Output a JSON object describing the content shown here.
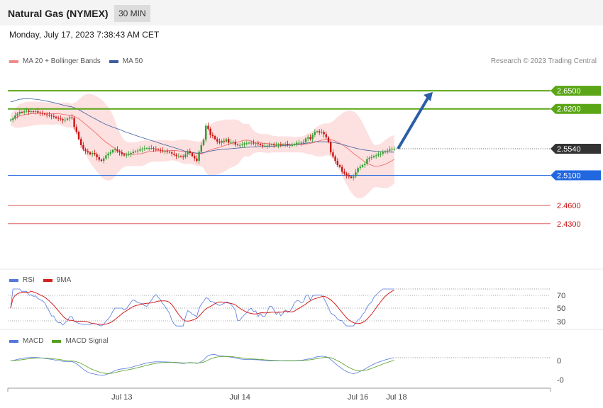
{
  "header": {
    "title": "Natural Gas (NYMEX)",
    "timeframe": "30 MIN"
  },
  "timestamp": "Monday, July 17, 2023 7:38:43 AM CET",
  "credit": "Research © 2023 Trading Central",
  "colors": {
    "resistance": "#5aa616",
    "support": "#2167e0",
    "weak_support": "#e06060",
    "current": "#333333",
    "arrow": "#2b5ea6",
    "bollinger_fill": "#fde0e0",
    "ma20": "#ee6060",
    "ma50": "#3a5f9e",
    "up": "#2e9e2e",
    "down": "#c81414",
    "rsi": "#5577dd",
    "rsi9ma": "#d42020",
    "macd": "#5577dd",
    "macd_signal": "#55a020"
  },
  "main_legend": [
    {
      "label": "MA 20 + Bollinger Bands",
      "color": "#f28b8b"
    },
    {
      "label": "MA 50",
      "color": "#3a5f9e"
    }
  ],
  "rsi_legend": [
    {
      "label": "RSI",
      "color": "#5577dd"
    },
    {
      "label": "9MA",
      "color": "#d42020"
    }
  ],
  "macd_legend": [
    {
      "label": "MACD",
      "color": "#5577dd"
    },
    {
      "label": "MACD Signal",
      "color": "#55a020"
    }
  ],
  "chart_data": {
    "type": "candlestick",
    "ylim": [
      2.418,
      2.683
    ],
    "price_levels": [
      {
        "value": 2.65,
        "label": "2.6500",
        "kind": "resistance"
      },
      {
        "value": 2.62,
        "label": "2.6200",
        "kind": "resistance"
      },
      {
        "value": 2.554,
        "label": "2.5540",
        "kind": "current"
      },
      {
        "value": 2.51,
        "label": "2.5100",
        "kind": "support"
      },
      {
        "value": 2.46,
        "label": "2.4600",
        "kind": "weak_support"
      },
      {
        "value": 2.43,
        "label": "2.4300",
        "kind": "weak_support"
      }
    ],
    "x_labels": [
      {
        "index": 49,
        "label": "Jul 13"
      },
      {
        "index": 101,
        "label": "Jul 14"
      },
      {
        "index": 153,
        "label": "Jul 16"
      },
      {
        "index": 170,
        "label": "Jul 18"
      }
    ],
    "forecast_arrow": {
      "from_index": 170,
      "from_value": 2.554,
      "to_index": 185,
      "to_value": 2.648
    },
    "close": [
      2.602,
      2.604,
      2.609,
      2.612,
      2.615,
      2.614,
      2.616,
      2.617,
      2.615,
      2.616,
      2.615,
      2.616,
      2.614,
      2.613,
      2.612,
      2.611,
      2.61,
      2.609,
      2.608,
      2.607,
      2.605,
      2.604,
      2.603,
      2.601,
      2.602,
      2.604,
      2.606,
      2.605,
      2.59,
      2.582,
      2.57,
      2.56,
      2.553,
      2.55,
      2.548,
      2.545,
      2.547,
      2.545,
      2.54,
      2.536,
      2.534,
      2.538,
      2.543,
      2.546,
      2.548,
      2.552,
      2.553,
      2.55,
      2.548,
      2.545,
      2.543,
      2.544,
      2.545,
      2.547,
      2.549,
      2.55,
      2.551,
      2.553,
      2.554,
      2.555,
      2.555,
      2.555,
      2.555,
      2.554,
      2.553,
      2.552,
      2.551,
      2.55,
      2.55,
      2.549,
      2.548,
      2.546,
      2.544,
      2.542,
      2.542,
      2.541,
      2.54,
      2.545,
      2.55,
      2.547,
      2.542,
      2.538,
      2.534,
      2.549,
      2.56,
      2.569,
      2.592,
      2.587,
      2.577,
      2.575,
      2.57,
      2.566,
      2.564,
      2.567,
      2.566,
      2.57,
      2.564,
      2.565,
      2.565,
      2.561,
      2.56,
      2.56,
      2.561,
      2.563,
      2.563,
      2.564,
      2.564,
      2.563,
      2.563,
      2.562,
      2.56,
      2.559,
      2.559,
      2.559,
      2.561,
      2.561,
      2.56,
      2.56,
      2.561,
      2.56,
      2.561,
      2.562,
      2.56,
      2.56,
      2.56,
      2.562,
      2.564,
      2.564,
      2.564,
      2.565,
      2.571,
      2.573,
      2.57,
      2.577,
      2.582,
      2.583,
      2.581,
      2.582,
      2.578,
      2.573,
      2.565,
      2.548,
      2.541,
      2.534,
      2.527,
      2.524,
      2.516,
      2.513,
      2.51,
      2.508,
      2.506,
      2.508,
      2.515,
      2.522,
      2.524,
      2.527,
      2.529,
      2.537,
      2.539,
      2.54,
      2.542,
      2.543,
      2.545,
      2.546,
      2.548,
      2.55,
      2.551,
      2.553,
      2.554,
      2.554
    ]
  }
}
